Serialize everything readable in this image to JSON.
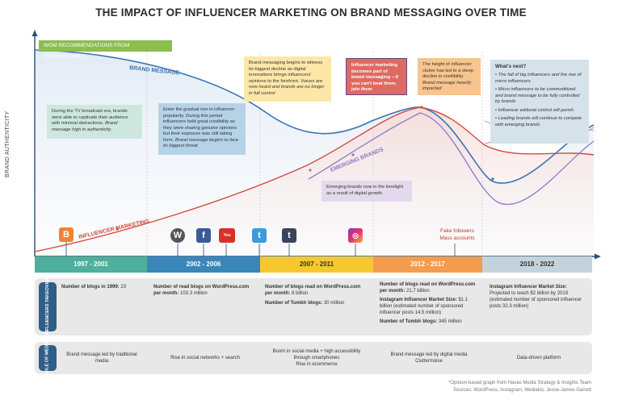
{
  "title": "THE IMPACT OF INFLUENCER MARKETING ON BRAND MESSAGING OVER TIME",
  "y_axis_label": "BRAND AUTHENTICITY",
  "wom_label": "WOM RECOMMENDATIONS FROM FRIENDS/FAMILY",
  "curve_labels": {
    "brand_message": "BRAND MESSAGE",
    "influencer_marketing": "INFLUENCER MARKETING",
    "emerging_brands": "EMERGING BRANDS"
  },
  "notes": {
    "tv_era": "During the TV broadcast era, brands were able to captivate their audience with minimal distractions.",
    "tv_era_italic": "Brand message high in authenticity.",
    "gradual_rise": "Enter the gradual rise in influencer popularity. During this period influencers held great credibility as they were sharing genuine opinions but their exposure was still taking form.",
    "gradual_rise_italic": "Brand message begins to face its biggest threat",
    "witness_decline": "Brand messaging begins to witness its biggest decline as digital innovations brings influencers' opinions to the forefront.",
    "witness_decline_italic": "Voices are now heard and brands are no longer in full control",
    "part_of_brand": "Influencer marketing becomes part of brand messaging – if you can't beat them, join them",
    "clutter_height": "The height of influencer clutter has led to a steep decline in credibility.",
    "clutter_height_italic": "Brand message heavily impacted",
    "emerging_limelight": "Emerging brands now in the limelight as a result of digital growth",
    "fake_followers": "Fake followers\nMass accounts"
  },
  "whats_next": {
    "heading": "What's next?",
    "items": [
      "The fall of big influencers and the rise of micro influencers",
      "Micro influencers to be commoditized and brand message to be fully controlled by brands",
      "Influencer editorial control will perish",
      "Leading brands will continue to compete with emerging brands"
    ]
  },
  "eras": [
    "1997 - 2001",
    "2002 - 2006",
    "2007 - 2011",
    "2012 - 2017",
    "2018 - 2022"
  ],
  "era_colors": [
    "#4daf9c",
    "#3a86b8",
    "#f6c830",
    "#f39c4e",
    "#c4d3db"
  ],
  "icons": [
    "blogger-icon",
    "wordpress-icon",
    "facebook-icon",
    "youtube-icon",
    "twitter-icon",
    "tumblr-icon",
    "instagram-icon"
  ],
  "influencers_takeover": {
    "label": "INFLUENCERS TAKEOVER",
    "c1": {
      "bold": "Number of blogs in 1999:",
      "value": " 23"
    },
    "c2": {
      "bold": "Number of read blogs on WordPress.com per month:",
      "value": " 103.3 million"
    },
    "c3a": {
      "bold": "Number of blogs read on WordPress.com per month:",
      "value": " 8 billion"
    },
    "c3b": {
      "bold": "Number of Tumblr blogs:",
      "value": " 30 million"
    },
    "c4a": {
      "bold": "Number of blogs read on WordPress.com per month:",
      "value": " 21.7 billion"
    },
    "c4b": {
      "bold": "Instagram Influencer Market Size:",
      "value": " $1.1 billion (estimated number of sponsored influencer posts 14.5 million)"
    },
    "c4c": {
      "bold": "Number of Tumblr blogs:",
      "value": " 345 million"
    },
    "c5": {
      "bold": "Instagram Influencer Market Size:",
      "value": " Projected to reach $2 billion by 2019 (estimated number of sponsored influencer posts 32.3 million)"
    }
  },
  "role_of_media": {
    "label": "ROLE OF MEDIA",
    "cells": [
      "Brand message led by traditional media",
      "Rise in social networks + search",
      "Boom in social media + high accessibility through smartphones\nRise in ecommerce",
      "Brand message led by digital media\nClutter/noise",
      "Data-driven platform"
    ]
  },
  "footnote_1": "*Opinion-based graph from Havas Media Strategy & Insights Team",
  "footnote_2": "Sources: WordPress, Instagram, Mediakix, Jesse-James Garrett"
}
